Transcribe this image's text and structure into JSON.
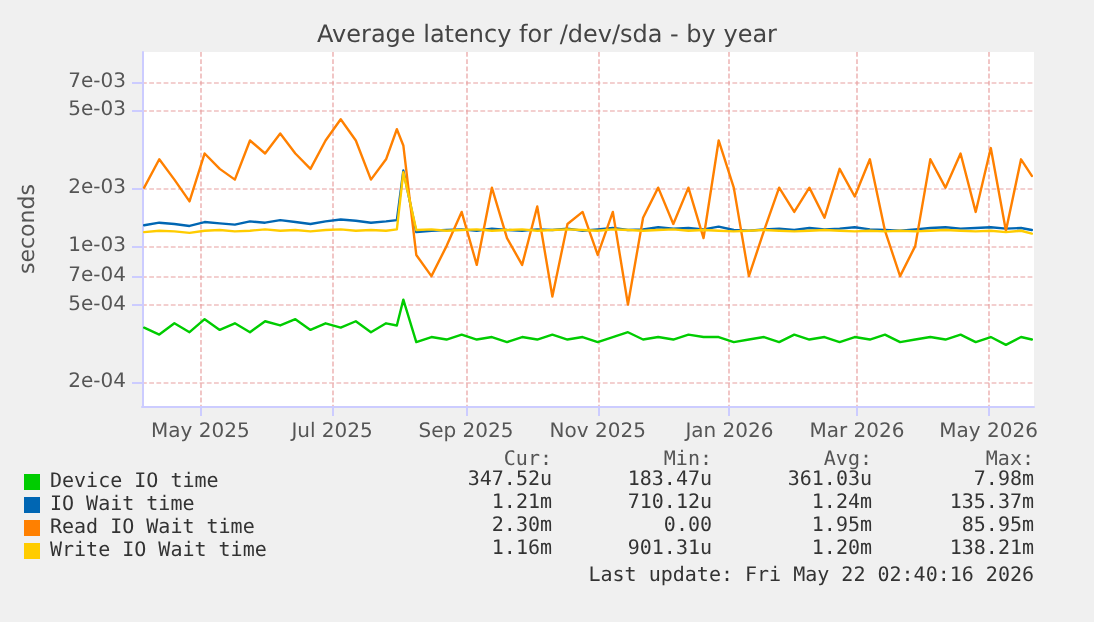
{
  "chart_data": {
    "type": "line",
    "title": "Average latency for /dev/sda - by year",
    "ylabel": "seconds",
    "x": [
      "2025-04-05",
      "2025-04-12",
      "2025-04-19",
      "2025-04-26",
      "2025-05-03",
      "2025-05-10",
      "2025-05-17",
      "2025-05-24",
      "2025-05-31",
      "2025-06-07",
      "2025-06-14",
      "2025-06-21",
      "2025-06-28",
      "2025-07-05",
      "2025-07-12",
      "2025-07-19",
      "2025-07-26",
      "2025-07-31",
      "2025-08-03",
      "2025-08-09",
      "2025-08-16",
      "2025-08-23",
      "2025-08-30",
      "2025-09-06",
      "2025-09-13",
      "2025-09-20",
      "2025-09-27",
      "2025-10-04",
      "2025-10-11",
      "2025-10-18",
      "2025-10-25",
      "2025-11-01",
      "2025-11-08",
      "2025-11-15",
      "2025-11-22",
      "2025-11-29",
      "2025-12-06",
      "2025-12-13",
      "2025-12-20",
      "2025-12-27",
      "2026-01-03",
      "2026-01-10",
      "2026-01-17",
      "2026-01-24",
      "2026-01-31",
      "2026-02-07",
      "2026-02-14",
      "2026-02-21",
      "2026-02-28",
      "2026-03-07",
      "2026-03-14",
      "2026-03-21",
      "2026-03-28",
      "2026-04-04",
      "2026-04-11",
      "2026-04-18",
      "2026-04-25",
      "2026-05-02",
      "2026-05-09",
      "2026-05-16",
      "2026-05-21"
    ],
    "series": [
      {
        "name": "Device IO time",
        "color": "#00cc00",
        "values": [
          0.00038,
          0.00035,
          0.0004,
          0.00036,
          0.00042,
          0.00037,
          0.0004,
          0.00036,
          0.00041,
          0.00039,
          0.00042,
          0.00037,
          0.0004,
          0.00038,
          0.00041,
          0.00036,
          0.0004,
          0.00039,
          0.00053,
          0.00032,
          0.00034,
          0.00033,
          0.00035,
          0.00033,
          0.00034,
          0.00032,
          0.00034,
          0.00033,
          0.00035,
          0.00033,
          0.00034,
          0.00032,
          0.00034,
          0.00036,
          0.00033,
          0.00034,
          0.00033,
          0.00035,
          0.00034,
          0.00034,
          0.00032,
          0.00033,
          0.00034,
          0.00032,
          0.00035,
          0.00033,
          0.00034,
          0.00032,
          0.00034,
          0.00033,
          0.00035,
          0.00032,
          0.00033,
          0.00034,
          0.00033,
          0.00035,
          0.00032,
          0.00034,
          0.00031,
          0.00034,
          0.00033
        ]
      },
      {
        "name": "IO Wait time",
        "color": "#0066b3",
        "values": [
          0.00128,
          0.00132,
          0.0013,
          0.00127,
          0.00133,
          0.00131,
          0.00129,
          0.00134,
          0.00132,
          0.00136,
          0.00133,
          0.0013,
          0.00134,
          0.00137,
          0.00135,
          0.00132,
          0.00134,
          0.00136,
          0.00245,
          0.00118,
          0.0012,
          0.00121,
          0.00122,
          0.0012,
          0.00123,
          0.00121,
          0.0012,
          0.00122,
          0.00121,
          0.00123,
          0.0012,
          0.00122,
          0.00124,
          0.00121,
          0.00122,
          0.00125,
          0.00123,
          0.00124,
          0.00122,
          0.00126,
          0.00121,
          0.0012,
          0.00122,
          0.00123,
          0.00121,
          0.00124,
          0.00122,
          0.00123,
          0.00125,
          0.00122,
          0.00121,
          0.0012,
          0.00122,
          0.00124,
          0.00125,
          0.00123,
          0.00124,
          0.00125,
          0.00123,
          0.00124,
          0.00121
        ]
      },
      {
        "name": "Read IO Wait time",
        "color": "#ff8000",
        "values": [
          0.002,
          0.0028,
          0.0022,
          0.0017,
          0.003,
          0.0025,
          0.0022,
          0.0035,
          0.003,
          0.0038,
          0.003,
          0.0025,
          0.0035,
          0.0045,
          0.0035,
          0.0022,
          0.0028,
          0.004,
          0.0033,
          0.0009,
          0.0007,
          0.001,
          0.0015,
          0.0008,
          0.002,
          0.0011,
          0.0008,
          0.0016,
          0.00055,
          0.0013,
          0.0015,
          0.0009,
          0.0015,
          0.0005,
          0.0014,
          0.002,
          0.0013,
          0.002,
          0.0011,
          0.0035,
          0.002,
          0.0007,
          0.0012,
          0.002,
          0.0015,
          0.002,
          0.0014,
          0.0025,
          0.0018,
          0.0028,
          0.0012,
          0.0007,
          0.001,
          0.0028,
          0.002,
          0.003,
          0.0015,
          0.0032,
          0.0012,
          0.0028,
          0.0023
        ]
      },
      {
        "name": "Write IO Wait time",
        "color": "#ffcc00",
        "values": [
          0.00118,
          0.0012,
          0.00119,
          0.00117,
          0.0012,
          0.00121,
          0.00119,
          0.0012,
          0.00122,
          0.0012,
          0.00121,
          0.00119,
          0.00121,
          0.00122,
          0.0012,
          0.00121,
          0.0012,
          0.00122,
          0.0024,
          0.00121,
          0.00122,
          0.0012,
          0.00121,
          0.00122,
          0.0012,
          0.00121,
          0.00122,
          0.0012,
          0.00121,
          0.00122,
          0.00121,
          0.0012,
          0.00122,
          0.00121,
          0.0012,
          0.00121,
          0.00122,
          0.0012,
          0.00121,
          0.0012,
          0.00119,
          0.0012,
          0.00121,
          0.0012,
          0.00119,
          0.0012,
          0.00121,
          0.0012,
          0.00119,
          0.0012,
          0.00119,
          0.0012,
          0.00119,
          0.0012,
          0.00121,
          0.0012,
          0.00119,
          0.0012,
          0.00118,
          0.0012,
          0.00116
        ]
      }
    ],
    "xlim": [
      "2025-04-04",
      "2026-05-22"
    ],
    "xticks": [
      {
        "value": "2025-05-01",
        "label": "May 2025"
      },
      {
        "value": "2025-07-01",
        "label": "Jul 2025"
      },
      {
        "value": "2025-09-01",
        "label": "Sep 2025"
      },
      {
        "value": "2025-11-01",
        "label": "Nov 2025"
      },
      {
        "value": "2026-01-01",
        "label": "Jan 2026"
      },
      {
        "value": "2026-03-01",
        "label": "Mar 2026"
      },
      {
        "value": "2026-05-01",
        "label": "May 2026"
      }
    ],
    "ylim": [
      0.00015,
      0.01
    ],
    "yticks": [
      {
        "value": 0.0002,
        "label": "2e-04"
      },
      {
        "value": 0.0005,
        "label": "5e-04"
      },
      {
        "value": 0.0007,
        "label": "7e-04"
      },
      {
        "value": 0.001,
        "label": "1e-03"
      },
      {
        "value": 0.002,
        "label": "2e-03"
      },
      {
        "value": 0.005,
        "label": "5e-03"
      },
      {
        "value": 0.007,
        "label": "7e-03"
      }
    ],
    "log": true,
    "grid": true,
    "legend": "bottom left",
    "marker": "none",
    "line_style": "solid",
    "annotations": [
      "Cur:",
      "Min:",
      "Avg:",
      "Max:",
      "347.52u",
      "183.47u",
      "361.03u",
      "7.98m",
      "1.21m",
      "710.12u",
      "1.24m",
      "135.37m",
      "2.30m",
      "0.00",
      "1.95m",
      "85.95m",
      "1.16m",
      "901.31u",
      "1.20m",
      "138.21m",
      "Last update: Fri May 22 02:40:16 2026"
    ]
  }
}
